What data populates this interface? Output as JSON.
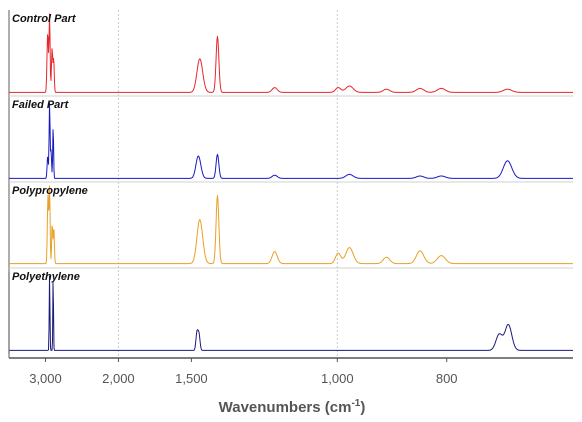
{
  "chart_data": {
    "type": "line",
    "title": "",
    "xlabel": "Wavenumbers (cm",
    "xlabel_sup": "-1",
    "xlabel_close": ")",
    "x_axis": "reciprocal (linear in wavelength)",
    "xlim": [
      4000,
      650
    ],
    "x_ticks": [
      {
        "value": 3000,
        "label": "3,000"
      },
      {
        "value": 2000,
        "label": "2,000"
      },
      {
        "value": 1500,
        "label": "1,500"
      },
      {
        "value": 1000,
        "label": "1,000"
      },
      {
        "value": 800,
        "label": "800"
      }
    ],
    "grid": "vertical dashed at 2,000 and 1,000",
    "y_units": "normalized absorbance (0-1 per panel)",
    "series": [
      {
        "name": "Control Part",
        "color": "#e8262a",
        "baseline": 0.02,
        "peaks": [
          {
            "x": 2955,
            "h": 0.75,
            "w": 14
          },
          {
            "x": 2918,
            "h": 0.97,
            "w": 10
          },
          {
            "x": 2870,
            "h": 0.55,
            "w": 12
          },
          {
            "x": 2840,
            "h": 0.4,
            "w": 10
          },
          {
            "x": 1458,
            "h": 0.42,
            "w": 14
          },
          {
            "x": 1377,
            "h": 0.7,
            "w": 6
          },
          {
            "x": 1167,
            "h": 0.06,
            "w": 8
          },
          {
            "x": 998,
            "h": 0.06,
            "w": 6
          },
          {
            "x": 973,
            "h": 0.08,
            "w": 8
          },
          {
            "x": 899,
            "h": 0.04,
            "w": 6
          },
          {
            "x": 841,
            "h": 0.05,
            "w": 6
          },
          {
            "x": 808,
            "h": 0.05,
            "w": 6
          },
          {
            "x": 720,
            "h": 0.04,
            "w": 5
          }
        ]
      },
      {
        "name": "Failed Part",
        "color": "#1919c4",
        "baseline": 0.02,
        "peaks": [
          {
            "x": 2955,
            "h": 0.28,
            "w": 12
          },
          {
            "x": 2918,
            "h": 0.95,
            "w": 9
          },
          {
            "x": 2890,
            "h": 0.35,
            "w": 10
          },
          {
            "x": 2850,
            "h": 0.65,
            "w": 8
          },
          {
            "x": 1465,
            "h": 0.28,
            "w": 12
          },
          {
            "x": 1377,
            "h": 0.3,
            "w": 6
          },
          {
            "x": 1167,
            "h": 0.04,
            "w": 8
          },
          {
            "x": 973,
            "h": 0.05,
            "w": 8
          },
          {
            "x": 841,
            "h": 0.03,
            "w": 6
          },
          {
            "x": 808,
            "h": 0.03,
            "w": 6
          },
          {
            "x": 720,
            "h": 0.22,
            "w": 5
          }
        ]
      },
      {
        "name": "Polypropylene",
        "color": "#e8a027",
        "baseline": 0.03,
        "peaks": [
          {
            "x": 2950,
            "h": 0.85,
            "w": 12
          },
          {
            "x": 2918,
            "h": 0.95,
            "w": 10
          },
          {
            "x": 2868,
            "h": 0.5,
            "w": 10
          },
          {
            "x": 2838,
            "h": 0.45,
            "w": 10
          },
          {
            "x": 1458,
            "h": 0.55,
            "w": 14
          },
          {
            "x": 1377,
            "h": 0.85,
            "w": 6
          },
          {
            "x": 1167,
            "h": 0.15,
            "w": 8
          },
          {
            "x": 998,
            "h": 0.13,
            "w": 6
          },
          {
            "x": 973,
            "h": 0.2,
            "w": 8
          },
          {
            "x": 899,
            "h": 0.08,
            "w": 6
          },
          {
            "x": 841,
            "h": 0.16,
            "w": 6
          },
          {
            "x": 808,
            "h": 0.1,
            "w": 6
          }
        ]
      },
      {
        "name": "Polyethylene",
        "color": "#1a1a7a",
        "baseline": 0.02,
        "peaks": [
          {
            "x": 2918,
            "h": 0.95,
            "w": 7
          },
          {
            "x": 2850,
            "h": 0.95,
            "w": 6
          },
          {
            "x": 1472,
            "h": 0.22,
            "w": 5
          },
          {
            "x": 1462,
            "h": 0.2,
            "w": 5
          },
          {
            "x": 730,
            "h": 0.2,
            "w": 4
          },
          {
            "x": 719,
            "h": 0.32,
            "w": 4
          }
        ]
      }
    ]
  }
}
